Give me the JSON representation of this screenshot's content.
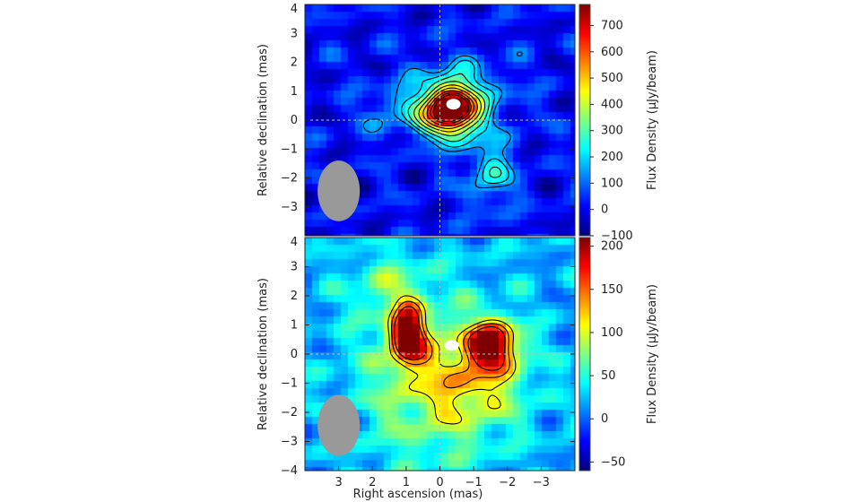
{
  "chart_data": [
    {
      "type": "heatmap",
      "panel": "top",
      "xlabel": "",
      "ylabel": "Relative declination (mas)",
      "xlim": [
        4,
        -4
      ],
      "ylim": [
        -4,
        4
      ],
      "yticks": [
        "4",
        "3",
        "2",
        "1",
        "0",
        "−1",
        "−2",
        "−3"
      ],
      "colorbar": {
        "label": "Flux Density (μJy/beam)",
        "range": [
          -100,
          780
        ],
        "ticks": [
          "700",
          "600",
          "500",
          "400",
          "300",
          "200",
          "100",
          "0",
          "−100"
        ],
        "tick_values": [
          700,
          600,
          500,
          400,
          300,
          200,
          100,
          0,
          -100
        ],
        "colormap": "jet"
      },
      "background_level": 10,
      "components": [
        {
          "x": -0.35,
          "y": 0.3,
          "peak": 770,
          "sx": 0.5,
          "sy": 0.6
        },
        {
          "x": -0.6,
          "y": 0.9,
          "peak": 210,
          "sx": 1.0,
          "sy": 0.8
        },
        {
          "x": -1.5,
          "y": -1.8,
          "peak": 210,
          "sx": 0.5,
          "sy": 0.9
        },
        {
          "x": 0.9,
          "y": 0.3,
          "peak": 150,
          "sx": 0.9,
          "sy": 0.6
        }
      ],
      "contour_levels": [
        140,
        200,
        270,
        350,
        430,
        510,
        590,
        660,
        720
      ],
      "beam": {
        "x": 3.0,
        "y": -2.45,
        "major_mas": 2.1,
        "minor_mas": 1.25,
        "color": "#999999"
      },
      "marker": {
        "x": -0.4,
        "y": 0.55,
        "color": "#ffffff"
      },
      "crosshair": {
        "x": 0,
        "y": 0
      }
    },
    {
      "type": "heatmap",
      "panel": "bottom",
      "xlabel": "Right ascension (mas)",
      "ylabel": "Relative declination (mas)",
      "xlim": [
        4,
        -4
      ],
      "ylim": [
        -4,
        4
      ],
      "xticks": [
        "3",
        "2",
        "1",
        "0",
        "−1",
        "−2",
        "−3"
      ],
      "xtick_values": [
        3,
        2,
        1,
        0,
        -1,
        -2,
        -3
      ],
      "yticks": [
        "4",
        "3",
        "2",
        "1",
        "0",
        "−1",
        "−2",
        "−3",
        "−4"
      ],
      "colorbar": {
        "label": "Flux Density (μJy/beam)",
        "range": [
          -60,
          210
        ],
        "ticks": [
          "200",
          "150",
          "100",
          "50",
          "0",
          "−50"
        ],
        "tick_values": [
          200,
          150,
          100,
          50,
          0,
          -50
        ],
        "colormap": "jet"
      },
      "background_level": 20,
      "components": [
        {
          "x": 0.95,
          "y": 0.65,
          "peak": 205,
          "sx": 0.35,
          "sy": 0.65
        },
        {
          "x": -1.55,
          "y": 0.35,
          "peak": 180,
          "sx": 0.5,
          "sy": 0.55
        },
        {
          "x": 0.2,
          "y": -1.0,
          "peak": 70,
          "sx": 1.5,
          "sy": 2.0
        },
        {
          "x": -1.2,
          "y": -0.9,
          "peak": 55,
          "sx": 1.0,
          "sy": 1.0
        },
        {
          "x": 1.5,
          "y": 2.3,
          "peak": 45,
          "sx": 0.8,
          "sy": 0.8
        }
      ],
      "contour_levels": [
        105,
        135,
        165
      ],
      "beam": {
        "x": 3.0,
        "y": -2.45,
        "major_mas": 2.1,
        "minor_mas": 1.25,
        "color": "#999999"
      },
      "marker": {
        "x": -0.35,
        "y": 0.3,
        "color": "#ffffff"
      },
      "crosshair": {
        "x": 0,
        "y": 0
      }
    }
  ]
}
